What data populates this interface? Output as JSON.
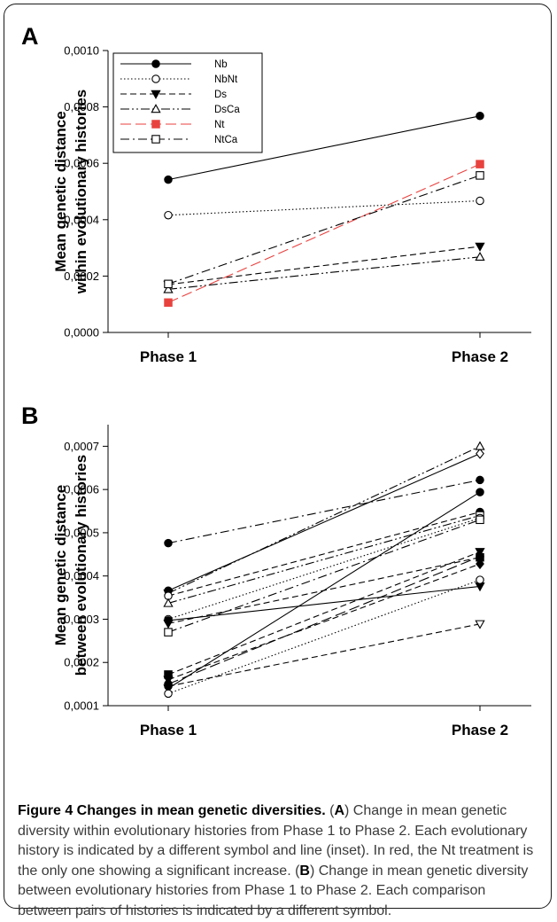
{
  "panels": {
    "a": {
      "letter": "A"
    },
    "b": {
      "letter": "B"
    }
  },
  "chart_data": [
    {
      "panel": "A",
      "type": "line",
      "categories": [
        "Phase 1",
        "Phase 2"
      ],
      "ylabel": [
        "Mean genetic distance",
        "within evolutionary histories"
      ],
      "ylim": [
        0,
        0.001
      ],
      "yticks": [
        "0,0000",
        "0,0002",
        "0,0004",
        "0,0006",
        "0,0008",
        "0,0010"
      ],
      "yticks_values": [
        0,
        0.0002,
        0.0004,
        0.0006,
        0.0008,
        0.001
      ],
      "legend_position": "top-left",
      "series": [
        {
          "name": "Nb",
          "values": [
            0.000542,
            0.000768
          ],
          "marker": "circle-filled",
          "dash": "solid",
          "color": "#000000"
        },
        {
          "name": "NbNt",
          "values": [
            0.000416,
            0.000467
          ],
          "marker": "circle-open",
          "dash": "dotted",
          "color": "#000000"
        },
        {
          "name": "Ds",
          "values": [
            0.00017,
            0.000305
          ],
          "marker": "triangle-down-filled",
          "dash": "dashed",
          "color": "#000000"
        },
        {
          "name": "DsCa",
          "values": [
            0.000153,
            0.000268
          ],
          "marker": "triangle-up-open",
          "dash": "dash-dot-dot",
          "color": "#000000"
        },
        {
          "name": "Nt",
          "values": [
            0.000106,
            0.000597
          ],
          "marker": "square-filled",
          "dash": "long-dash",
          "color": "#e8423f"
        },
        {
          "name": "NtCa",
          "values": [
            0.000172,
            0.000557
          ],
          "marker": "square-open",
          "dash": "dash-dot",
          "color": "#000000"
        }
      ]
    },
    {
      "panel": "B",
      "type": "line",
      "categories": [
        "Phase 1",
        "Phase 2"
      ],
      "ylabel": [
        "Mean genetic distance",
        "between evolutionary histories"
      ],
      "ylim": [
        0.0001,
        0.00075
      ],
      "yticks": [
        "0,0001",
        "0,0002",
        "0,0003",
        "0,0004",
        "0,0005",
        "0,0006",
        "0,0007"
      ],
      "yticks_values": [
        0.0001,
        0.0002,
        0.0003,
        0.0004,
        0.0005,
        0.0006,
        0.0007
      ],
      "series": [
        {
          "values": [
            0.000476,
            0.000622
          ],
          "m1": "circle-filled",
          "m2": "circle-filled",
          "dash": "dash-dot"
        },
        {
          "values": [
            0.000366,
            0.000683
          ],
          "m1": "circle-filled",
          "m2": "diamond-open",
          "dash": "solid"
        },
        {
          "values": [
            0.00036,
            0.0007
          ],
          "m1": "triangle-down-filled",
          "m2": "triangle-up-open",
          "dash": "dash-dot-dot"
        },
        {
          "values": [
            0.000354,
            0.000548
          ],
          "m1": "circle-open",
          "m2": "circle-filled",
          "dash": "dashed"
        },
        {
          "values": [
            0.000337,
            0.00054
          ],
          "m1": "triangle-up-open",
          "m2": "square-open",
          "dash": "dash-dot-dot"
        },
        {
          "values": [
            0.0003,
            0.000534
          ],
          "m1": "circle-open",
          "m2": "circle-open",
          "dash": "dotted"
        },
        {
          "values": [
            0.000297,
            0.000376
          ],
          "m1": "circle-filled",
          "m2": "triangle-down-filled",
          "dash": "solid"
        },
        {
          "values": [
            0.00029,
            0.000443
          ],
          "m1": "triangle-down-filled",
          "m2": "square-filled",
          "dash": "dashed"
        },
        {
          "values": [
            0.00027,
            0.00053
          ],
          "m1": "square-open",
          "m2": "square-open",
          "dash": "dash-dot"
        },
        {
          "values": [
            0.000172,
            0.000456
          ],
          "m1": "square-filled",
          "m2": "triangle-down-filled",
          "dash": "dashed"
        },
        {
          "values": [
            0.00016,
            0.000428
          ],
          "m1": "triangle-down-filled",
          "m2": "diamond-filled",
          "dash": "dashed"
        },
        {
          "values": [
            0.00015,
            0.000445
          ],
          "m1": "circle-filled",
          "m2": "circle-filled",
          "dash": "long-dash"
        },
        {
          "values": [
            0.00014,
            0.000594
          ],
          "m1": "triangle-down-filled",
          "m2": "circle-filled",
          "dash": "solid"
        },
        {
          "values": [
            0.000145,
            0.000289
          ],
          "m1": "circle-filled",
          "m2": "triangle-down-open",
          "dash": "dashed"
        },
        {
          "values": [
            0.000128,
            0.000391
          ],
          "m1": "circle-open",
          "m2": "circle-open",
          "dash": "dotted"
        }
      ]
    }
  ],
  "caption": {
    "title": "Figure 4 Changes in mean genetic diversities.",
    "p1_open": " (",
    "A": "A",
    "p1_text": ") Change in mean genetic diversity within evolutionary histories from Phase 1 to Phase 2. Each evolutionary history is indicated by a different symbol and line (inset). In red, the Nt treatment is the only one showing a significant increase. (",
    "B": "B",
    "p2_text": ") Change in mean genetic diversity between evolutionary histories from Phase 1 to Phase 2. Each comparison between pairs of histories is indicated by a different symbol."
  }
}
